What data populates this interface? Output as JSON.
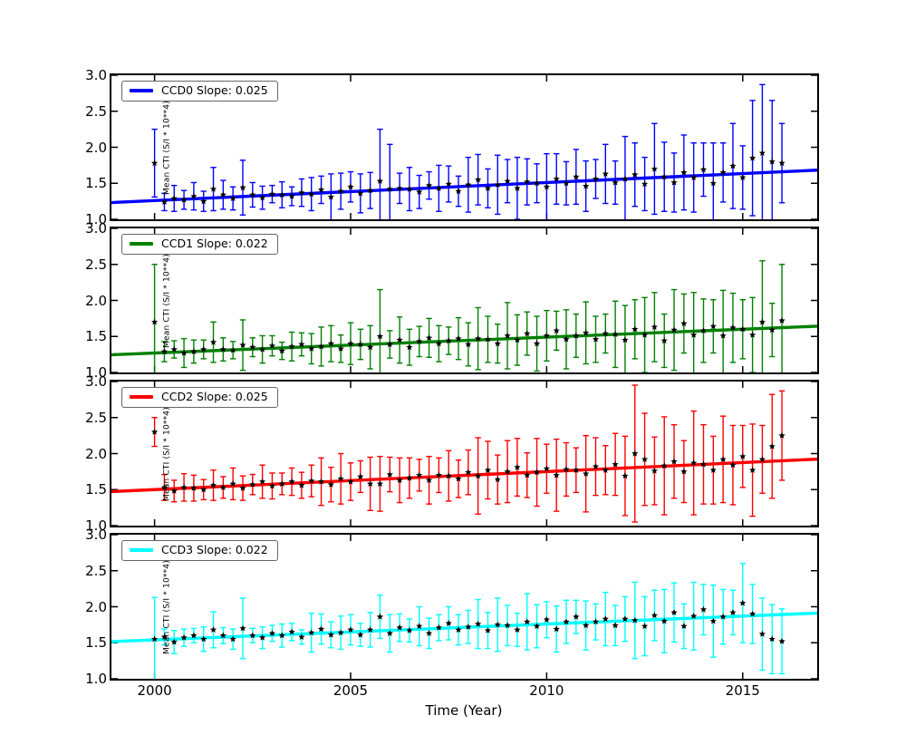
{
  "figure": {
    "background": "#ffffff",
    "frame_color": "#000000",
    "text_color": "#000000",
    "marker_color": "#000000",
    "xlabel": "Time (Year)",
    "ylabel": "Mean CTI (S/I * 10**4)",
    "xticks": [
      "2000",
      "2005",
      "2010",
      "2015"
    ],
    "xtick_years": [
      2000,
      2005,
      2010,
      2015
    ],
    "yticks": [
      "3.0",
      "2.5",
      "2.0",
      "1.5",
      "1.0"
    ],
    "ytick_values": [
      3.0,
      2.5,
      2.0,
      1.5,
      1.0
    ],
    "xlim": [
      1998.9,
      2016.9
    ],
    "ylim": [
      1.0,
      3.0
    ],
    "grid": false,
    "legend_position": "upper left"
  },
  "chart_data": [
    {
      "type": "scatter-errorbar-with-fitline",
      "name": "CCD0",
      "color": "#0000ff",
      "legend_label": "CCD0 Slope: 0.025",
      "fit": {
        "slope": 0.025,
        "value_at_2000": 1.26
      },
      "points": [
        [
          2000.0,
          1.78,
          0.47
        ],
        [
          2000.25,
          1.24,
          0.12
        ],
        [
          2000.5,
          1.29,
          0.18
        ],
        [
          2000.75,
          1.27,
          0.13
        ],
        [
          2001.0,
          1.32,
          0.19
        ],
        [
          2001.25,
          1.25,
          0.14
        ],
        [
          2001.5,
          1.42,
          0.3
        ],
        [
          2001.75,
          1.34,
          0.2
        ],
        [
          2002.0,
          1.29,
          0.16
        ],
        [
          2002.25,
          1.44,
          0.38
        ],
        [
          2002.5,
          1.34,
          0.17
        ],
        [
          2002.75,
          1.3,
          0.16
        ],
        [
          2003.0,
          1.35,
          0.12
        ],
        [
          2003.25,
          1.34,
          0.18
        ],
        [
          2003.5,
          1.32,
          0.13
        ],
        [
          2003.75,
          1.37,
          0.19
        ],
        [
          2004.0,
          1.35,
          0.23
        ],
        [
          2004.25,
          1.41,
          0.19
        ],
        [
          2004.5,
          1.31,
          0.32
        ],
        [
          2004.75,
          1.39,
          0.25
        ],
        [
          2005.0,
          1.45,
          0.21
        ],
        [
          2005.25,
          1.36,
          0.27
        ],
        [
          2005.5,
          1.4,
          0.25
        ],
        [
          2005.75,
          1.53,
          0.72
        ],
        [
          2006.0,
          1.42,
          0.62
        ],
        [
          2006.25,
          1.43,
          0.21
        ],
        [
          2006.5,
          1.42,
          0.3
        ],
        [
          2006.75,
          1.38,
          0.23
        ],
        [
          2007.0,
          1.47,
          0.19
        ],
        [
          2007.25,
          1.43,
          0.32
        ],
        [
          2007.5,
          1.49,
          0.25
        ],
        [
          2007.75,
          1.39,
          0.21
        ],
        [
          2008.0,
          1.48,
          0.38
        ],
        [
          2008.25,
          1.55,
          0.35
        ],
        [
          2008.5,
          1.43,
          0.27
        ],
        [
          2008.75,
          1.48,
          0.41
        ],
        [
          2009.0,
          1.53,
          0.3
        ],
        [
          2009.25,
          1.43,
          0.43
        ],
        [
          2009.5,
          1.52,
          0.32
        ],
        [
          2009.75,
          1.5,
          0.27
        ],
        [
          2010.0,
          1.45,
          0.46
        ],
        [
          2010.25,
          1.56,
          0.35
        ],
        [
          2010.5,
          1.5,
          0.3
        ],
        [
          2010.75,
          1.59,
          0.38
        ],
        [
          2011.0,
          1.46,
          0.35
        ],
        [
          2011.25,
          1.56,
          0.27
        ],
        [
          2011.5,
          1.63,
          0.41
        ],
        [
          2011.75,
          1.51,
          0.3
        ],
        [
          2012.0,
          1.56,
          0.59
        ],
        [
          2012.25,
          1.62,
          0.44
        ],
        [
          2012.5,
          1.49,
          0.37
        ],
        [
          2012.75,
          1.7,
          0.63
        ],
        [
          2013.0,
          1.59,
          0.48
        ],
        [
          2013.25,
          1.51,
          0.41
        ],
        [
          2013.5,
          1.65,
          0.52
        ],
        [
          2013.75,
          1.58,
          0.48
        ],
        [
          2014.0,
          1.69,
          0.37
        ],
        [
          2014.25,
          1.5,
          0.56
        ],
        [
          2014.5,
          1.65,
          0.41
        ],
        [
          2014.75,
          1.74,
          0.59
        ],
        [
          2015.0,
          1.58,
          0.44
        ],
        [
          2015.25,
          1.85,
          0.8
        ],
        [
          2015.5,
          1.92,
          0.95
        ],
        [
          2015.75,
          1.8,
          0.85
        ],
        [
          2016.0,
          1.78,
          0.55
        ]
      ]
    },
    {
      "type": "scatter-errorbar-with-fitline",
      "name": "CCD1",
      "color": "#008000",
      "legend_label": "CCD1 Slope: 0.022",
      "fit": {
        "slope": 0.022,
        "value_at_2000": 1.27
      },
      "points": [
        [
          2000.0,
          1.7,
          0.8
        ],
        [
          2000.25,
          1.29,
          0.14
        ],
        [
          2000.5,
          1.32,
          0.12
        ],
        [
          2000.75,
          1.27,
          0.2
        ],
        [
          2001.0,
          1.29,
          0.16
        ],
        [
          2001.25,
          1.32,
          0.13
        ],
        [
          2001.5,
          1.42,
          0.28
        ],
        [
          2001.75,
          1.32,
          0.16
        ],
        [
          2002.0,
          1.31,
          0.12
        ],
        [
          2002.25,
          1.38,
          0.35
        ],
        [
          2002.5,
          1.35,
          0.13
        ],
        [
          2002.75,
          1.32,
          0.19
        ],
        [
          2003.0,
          1.37,
          0.14
        ],
        [
          2003.25,
          1.3,
          0.12
        ],
        [
          2003.5,
          1.36,
          0.2
        ],
        [
          2003.75,
          1.39,
          0.16
        ],
        [
          2004.0,
          1.33,
          0.21
        ],
        [
          2004.25,
          1.36,
          0.27
        ],
        [
          2004.5,
          1.4,
          0.25
        ],
        [
          2004.75,
          1.33,
          0.19
        ],
        [
          2005.0,
          1.4,
          0.29
        ],
        [
          2005.25,
          1.39,
          0.21
        ],
        [
          2005.5,
          1.35,
          0.3
        ],
        [
          2005.75,
          1.5,
          0.65
        ],
        [
          2006.0,
          1.39,
          0.19
        ],
        [
          2006.25,
          1.45,
          0.32
        ],
        [
          2006.5,
          1.35,
          0.25
        ],
        [
          2006.75,
          1.43,
          0.21
        ],
        [
          2007.0,
          1.48,
          0.27
        ],
        [
          2007.25,
          1.4,
          0.25
        ],
        [
          2007.5,
          1.44,
          0.19
        ],
        [
          2007.75,
          1.47,
          0.29
        ],
        [
          2008.0,
          1.39,
          0.3
        ],
        [
          2008.25,
          1.47,
          0.43
        ],
        [
          2008.5,
          1.46,
          0.32
        ],
        [
          2008.75,
          1.4,
          0.27
        ],
        [
          2009.0,
          1.51,
          0.46
        ],
        [
          2009.25,
          1.45,
          0.35
        ],
        [
          2009.5,
          1.54,
          0.3
        ],
        [
          2009.75,
          1.4,
          0.38
        ],
        [
          2010.0,
          1.51,
          0.35
        ],
        [
          2010.25,
          1.58,
          0.27
        ],
        [
          2010.5,
          1.46,
          0.41
        ],
        [
          2010.75,
          1.51,
          0.3
        ],
        [
          2011.0,
          1.55,
          0.43
        ],
        [
          2011.25,
          1.46,
          0.32
        ],
        [
          2011.5,
          1.54,
          0.27
        ],
        [
          2011.75,
          1.53,
          0.46
        ],
        [
          2012.0,
          1.45,
          0.48
        ],
        [
          2012.25,
          1.6,
          0.41
        ],
        [
          2012.5,
          1.52,
          0.52
        ],
        [
          2012.75,
          1.63,
          0.48
        ],
        [
          2013.0,
          1.44,
          0.37
        ],
        [
          2013.25,
          1.59,
          0.56
        ],
        [
          2013.5,
          1.68,
          0.41
        ],
        [
          2013.75,
          1.52,
          0.59
        ],
        [
          2014.0,
          1.58,
          0.44
        ],
        [
          2014.25,
          1.64,
          0.37
        ],
        [
          2014.5,
          1.51,
          0.63
        ],
        [
          2014.75,
          1.62,
          0.48
        ],
        [
          2015.0,
          1.6,
          0.41
        ],
        [
          2015.25,
          1.52,
          0.52
        ],
        [
          2015.5,
          1.7,
          0.85
        ],
        [
          2015.75,
          1.59,
          0.37
        ],
        [
          2016.0,
          1.72,
          0.78
        ]
      ]
    },
    {
      "type": "scatter-errorbar-with-fitline",
      "name": "CCD2",
      "color": "#ff0000",
      "legend_label": "CCD2 Slope: 0.025",
      "fit": {
        "slope": 0.025,
        "value_at_2000": 1.5
      },
      "points": [
        [
          2000.0,
          2.3,
          0.2
        ],
        [
          2000.25,
          1.53,
          0.18
        ],
        [
          2000.5,
          1.48,
          0.15
        ],
        [
          2000.75,
          1.53,
          0.19
        ],
        [
          2001.0,
          1.52,
          0.18
        ],
        [
          2001.25,
          1.5,
          0.14
        ],
        [
          2001.5,
          1.56,
          0.21
        ],
        [
          2001.75,
          1.53,
          0.15
        ],
        [
          2002.0,
          1.58,
          0.22
        ],
        [
          2002.25,
          1.52,
          0.17
        ],
        [
          2002.5,
          1.57,
          0.14
        ],
        [
          2002.75,
          1.61,
          0.23
        ],
        [
          2003.0,
          1.55,
          0.18
        ],
        [
          2003.25,
          1.58,
          0.15
        ],
        [
          2003.5,
          1.61,
          0.19
        ],
        [
          2003.75,
          1.56,
          0.18
        ],
        [
          2004.0,
          1.62,
          0.22
        ],
        [
          2004.25,
          1.61,
          0.33
        ],
        [
          2004.5,
          1.57,
          0.24
        ],
        [
          2004.75,
          1.65,
          0.35
        ],
        [
          2005.0,
          1.61,
          0.26
        ],
        [
          2005.25,
          1.68,
          0.22
        ],
        [
          2005.5,
          1.58,
          0.37
        ],
        [
          2005.75,
          1.58,
          0.38
        ],
        [
          2006.0,
          1.71,
          0.24
        ],
        [
          2006.25,
          1.63,
          0.31
        ],
        [
          2006.5,
          1.66,
          0.28
        ],
        [
          2006.75,
          1.7,
          0.22
        ],
        [
          2007.0,
          1.63,
          0.33
        ],
        [
          2007.25,
          1.7,
          0.24
        ],
        [
          2007.5,
          1.69,
          0.35
        ],
        [
          2007.75,
          1.65,
          0.26
        ],
        [
          2008.0,
          1.74,
          0.31
        ],
        [
          2008.25,
          1.69,
          0.53
        ],
        [
          2008.5,
          1.77,
          0.4
        ],
        [
          2008.75,
          1.64,
          0.34
        ],
        [
          2009.0,
          1.75,
          0.43
        ],
        [
          2009.25,
          1.81,
          0.4
        ],
        [
          2009.5,
          1.7,
          0.31
        ],
        [
          2009.75,
          1.74,
          0.47
        ],
        [
          2010.0,
          1.79,
          0.34
        ],
        [
          2010.25,
          1.7,
          0.5
        ],
        [
          2010.5,
          1.78,
          0.37
        ],
        [
          2010.75,
          1.77,
          0.31
        ],
        [
          2011.0,
          1.72,
          0.53
        ],
        [
          2011.25,
          1.82,
          0.4
        ],
        [
          2011.5,
          1.77,
          0.34
        ],
        [
          2011.75,
          1.85,
          0.43
        ],
        [
          2012.0,
          1.69,
          0.55
        ],
        [
          2012.25,
          2.0,
          0.95
        ],
        [
          2012.5,
          1.92,
          0.64
        ],
        [
          2012.75,
          1.76,
          0.47
        ],
        [
          2013.0,
          1.83,
          0.68
        ],
        [
          2013.25,
          1.89,
          0.51
        ],
        [
          2013.5,
          1.75,
          0.43
        ],
        [
          2013.75,
          1.87,
          0.72
        ],
        [
          2014.0,
          1.85,
          0.55
        ],
        [
          2014.25,
          1.77,
          0.47
        ],
        [
          2014.5,
          1.92,
          0.6
        ],
        [
          2014.75,
          1.84,
          0.55
        ],
        [
          2015.0,
          1.96,
          0.43
        ],
        [
          2015.25,
          1.77,
          0.64
        ],
        [
          2015.5,
          1.92,
          0.47
        ],
        [
          2015.75,
          2.1,
          0.72
        ],
        [
          2016.0,
          2.25,
          0.62
        ]
      ]
    },
    {
      "type": "scatter-errorbar-with-fitline",
      "name": "CCD3",
      "color": "#00ffff",
      "legend_label": "CCD3 Slope: 0.022",
      "fit": {
        "slope": 0.022,
        "value_at_2000": 1.54
      },
      "points": [
        [
          2000.0,
          1.55,
          0.58
        ],
        [
          2000.25,
          1.58,
          0.11
        ],
        [
          2000.5,
          1.51,
          0.16
        ],
        [
          2000.75,
          1.57,
          0.12
        ],
        [
          2001.0,
          1.6,
          0.1
        ],
        [
          2001.25,
          1.55,
          0.17
        ],
        [
          2001.5,
          1.68,
          0.25
        ],
        [
          2001.75,
          1.6,
          0.11
        ],
        [
          2002.0,
          1.55,
          0.14
        ],
        [
          2002.25,
          1.7,
          0.42
        ],
        [
          2002.5,
          1.6,
          0.1
        ],
        [
          2002.75,
          1.57,
          0.15
        ],
        [
          2003.0,
          1.63,
          0.11
        ],
        [
          2003.25,
          1.6,
          0.16
        ],
        [
          2003.5,
          1.65,
          0.12
        ],
        [
          2003.75,
          1.58,
          0.1
        ],
        [
          2004.0,
          1.64,
          0.27
        ],
        [
          2004.25,
          1.69,
          0.21
        ],
        [
          2004.5,
          1.61,
          0.18
        ],
        [
          2004.75,
          1.64,
          0.23
        ],
        [
          2005.0,
          1.68,
          0.21
        ],
        [
          2005.25,
          1.61,
          0.16
        ],
        [
          2005.5,
          1.68,
          0.24
        ],
        [
          2005.75,
          1.86,
          0.3
        ],
        [
          2006.0,
          1.63,
          0.26
        ],
        [
          2006.25,
          1.71,
          0.19
        ],
        [
          2006.5,
          1.67,
          0.16
        ],
        [
          2006.75,
          1.73,
          0.27
        ],
        [
          2007.0,
          1.63,
          0.21
        ],
        [
          2007.25,
          1.71,
          0.18
        ],
        [
          2007.5,
          1.77,
          0.23
        ],
        [
          2007.75,
          1.68,
          0.21
        ],
        [
          2008.0,
          1.72,
          0.23
        ],
        [
          2008.25,
          1.76,
          0.34
        ],
        [
          2008.5,
          1.67,
          0.25
        ],
        [
          2008.75,
          1.75,
          0.37
        ],
        [
          2009.0,
          1.74,
          0.28
        ],
        [
          2009.25,
          1.68,
          0.23
        ],
        [
          2009.5,
          1.79,
          0.39
        ],
        [
          2009.75,
          1.73,
          0.3
        ],
        [
          2010.0,
          1.82,
          0.25
        ],
        [
          2010.25,
          1.69,
          0.32
        ],
        [
          2010.5,
          1.79,
          0.3
        ],
        [
          2010.75,
          1.86,
          0.23
        ],
        [
          2011.0,
          1.74,
          0.34
        ],
        [
          2011.25,
          1.79,
          0.25
        ],
        [
          2011.5,
          1.83,
          0.37
        ],
        [
          2011.75,
          1.74,
          0.28
        ],
        [
          2012.0,
          1.83,
          0.31
        ],
        [
          2012.25,
          1.81,
          0.53
        ],
        [
          2012.5,
          1.73,
          0.41
        ],
        [
          2012.75,
          1.88,
          0.35
        ],
        [
          2013.0,
          1.8,
          0.44
        ],
        [
          2013.25,
          1.92,
          0.41
        ],
        [
          2013.5,
          1.73,
          0.31
        ],
        [
          2013.75,
          1.87,
          0.47
        ],
        [
          2014.0,
          1.96,
          0.35
        ],
        [
          2014.25,
          1.8,
          0.5
        ],
        [
          2014.5,
          1.86,
          0.38
        ],
        [
          2014.75,
          1.92,
          0.31
        ],
        [
          2015.0,
          2.05,
          0.55
        ],
        [
          2015.25,
          1.9,
          0.41
        ],
        [
          2015.5,
          1.62,
          0.5
        ],
        [
          2015.75,
          1.55,
          0.48
        ],
        [
          2016.0,
          1.52,
          0.45
        ]
      ]
    }
  ]
}
